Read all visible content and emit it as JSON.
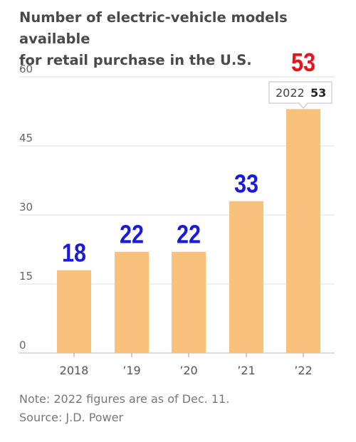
{
  "header": {
    "title_line1": "Number of electric-vehicle models available",
    "title_line2": "for retail purchase in the U.S."
  },
  "chart_data": {
    "type": "bar",
    "categories": [
      "2018",
      "’19",
      "’20",
      "’21",
      "’22"
    ],
    "values": [
      18,
      22,
      22,
      33,
      53
    ],
    "data_labels": [
      "18",
      "22",
      "22",
      "33",
      "53"
    ],
    "ylim": [
      0,
      60
    ],
    "yticks": [
      "0",
      "15",
      "30",
      "45",
      "60"
    ],
    "grid": true,
    "bar_color": "#f8c17d",
    "label_color_blue": "#1a1adb",
    "label_color_red": "#e8141a",
    "tooltip": {
      "year": "2022",
      "value": "53"
    }
  },
  "footer": {
    "note": "Note: 2022 figures are as of Dec. 11.",
    "source": "Source: J.D. Power"
  }
}
